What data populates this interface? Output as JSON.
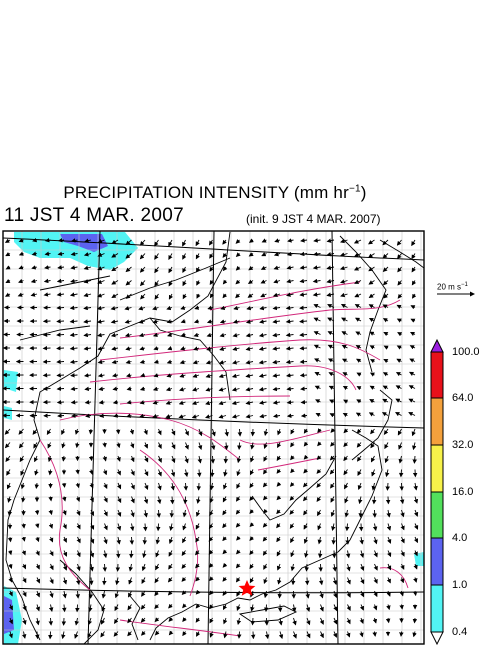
{
  "title_main": "PRECIPITATION INTENSITY (mm hr",
  "title_exp": "−1",
  "title_close": ")",
  "valid_time": "11 JST 4 MAR. 2007",
  "init_time": "(init. 9 JST 4 MAR. 2007)",
  "ref_vector": {
    "label": "20 m s",
    "exp": "−1"
  },
  "colorbar": {
    "labels": [
      "100.0",
      "64.0",
      "32.0",
      "16.0",
      "4.0",
      "1.0",
      "0.4"
    ],
    "colors": [
      "#9b1fe0",
      "#e8111a",
      "#f4a13c",
      "#f7f24a",
      "#52e05c",
      "#5c63f0",
      "#52f4f4",
      "#ffffff"
    ]
  },
  "marker": {
    "symbol": "star",
    "color": "#ff0000"
  }
}
